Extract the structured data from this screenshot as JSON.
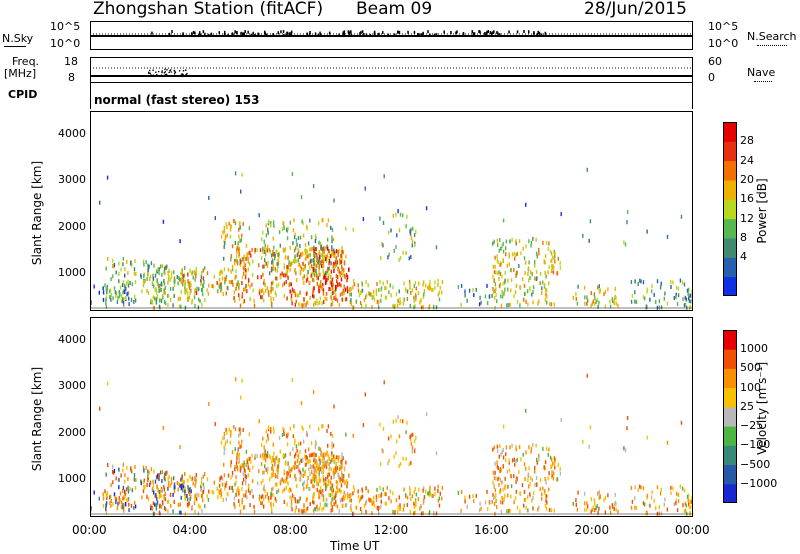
{
  "header": {
    "station": "Zhongshan Station (fitACF)",
    "beam": "Beam 09",
    "date": "28/Jun/2015"
  },
  "params": {
    "nsky_label": "N.Sky",
    "nsearch_label": "N.Search",
    "nsky_ticks": [
      "10^5",
      "10^0"
    ],
    "nsky_right_ticks": [
      "10^5",
      "10^0"
    ],
    "freq_label": "Freq.",
    "freq_unit": "[MHz]",
    "freq_ticks": [
      "18",
      "8"
    ],
    "nave_label": "Nave",
    "nave_ticks": [
      "60",
      "0"
    ],
    "cpid_label": "CPID",
    "cpid_text": "normal (fast stereo) 153"
  },
  "chart_data": [
    {
      "type": "heatmap",
      "name": "power-panel",
      "ylabel": "Slant Range [km]",
      "yticks": [
        "4000",
        "3000",
        "2000",
        "1000"
      ],
      "ylim": [
        180,
        4500
      ],
      "xlim": [
        0,
        24
      ],
      "colorbar_label": "Power [dB]",
      "colorbar_ticks": [
        "28",
        "24",
        "20",
        "16",
        "12",
        "8",
        "4"
      ],
      "colors": [
        "#1030e8",
        "#2860b0",
        "#408a70",
        "#58b850",
        "#b8d820",
        "#f0b000",
        "#f07000",
        "#e83010",
        "#e80000"
      ]
    },
    {
      "type": "heatmap",
      "name": "velocity-panel",
      "ylabel": "Slant Range [km]",
      "yticks": [
        "4000",
        "3000",
        "2000",
        "1000"
      ],
      "ylim": [
        180,
        4500
      ],
      "xlim": [
        0,
        24
      ],
      "colorbar_label": "Velocity [m s⁻¹]",
      "colorbar_ticks": [
        "1000",
        "500",
        "100",
        "25",
        "−25",
        "−100",
        "−500",
        "−1000"
      ],
      "colors": [
        "#1828d0",
        "#2858a8",
        "#388a78",
        "#4ab840",
        "#b8b8b8",
        "#f8c000",
        "#f89000",
        "#f05000",
        "#e80000"
      ]
    }
  ],
  "xaxis": {
    "ticks": [
      "00:00",
      "04:00",
      "08:00",
      "12:00",
      "16:00",
      "20:00",
      "00:00"
    ],
    "label": "Time UT"
  }
}
